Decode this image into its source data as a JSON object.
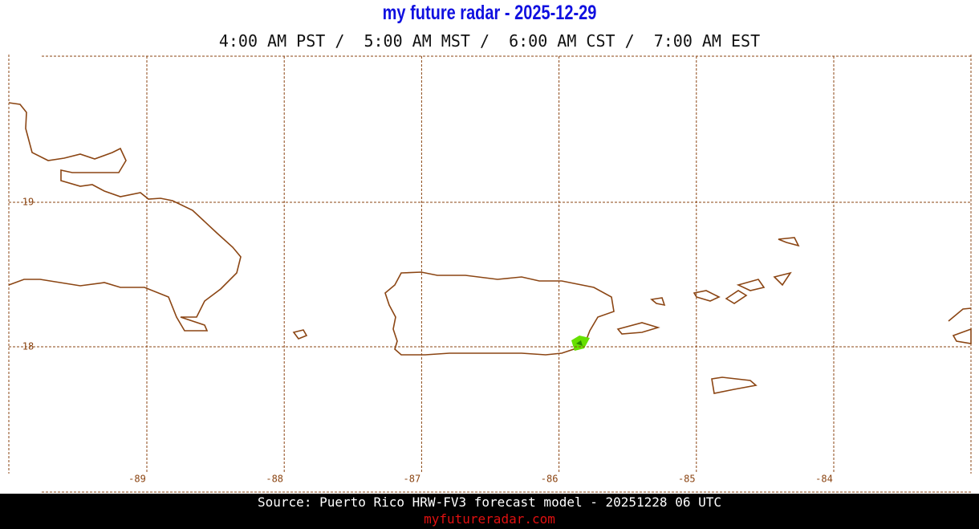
{
  "header": {
    "title": "my future radar - 2025-12-29",
    "times": "4:00 AM PST /  5:00 AM MST /  6:00 AM CST /  7:00 AM EST"
  },
  "map": {
    "lat_ticks": [
      19,
      18
    ],
    "lon_ticks": [
      -89,
      -88,
      -87,
      -86,
      -85,
      -84
    ]
  },
  "footer": {
    "source": "Source: Puerto Rico HRW-FV3 forecast model - 20251228 06 UTC",
    "site": "myfutureradar.com"
  }
}
